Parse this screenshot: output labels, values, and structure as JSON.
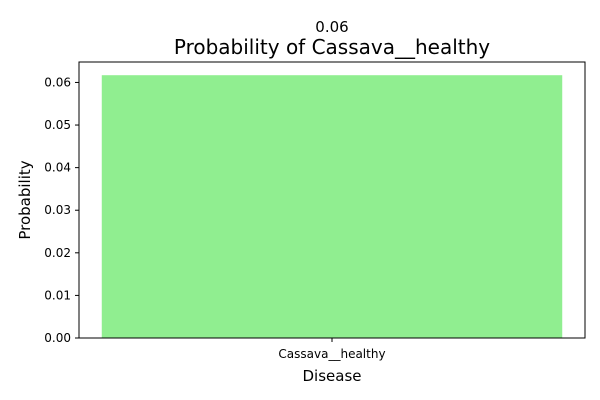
{
  "chart_data": {
    "type": "bar",
    "title": "Probability of Cassava__healthy",
    "xlabel": "Disease",
    "ylabel": "Probability",
    "categories": [
      "Cassava__healthy"
    ],
    "values": [
      0.0617
    ],
    "value_labels": [
      "0.06"
    ],
    "ylim": [
      0,
      0.0648
    ],
    "yticks": [
      0.0,
      0.01,
      0.02,
      0.03,
      0.04,
      0.05,
      0.06
    ],
    "ytick_labels": [
      "0.00",
      "0.01",
      "0.02",
      "0.03",
      "0.04",
      "0.05",
      "0.06"
    ],
    "bar_color": "#90ee90",
    "grid": false,
    "legend": "none"
  }
}
